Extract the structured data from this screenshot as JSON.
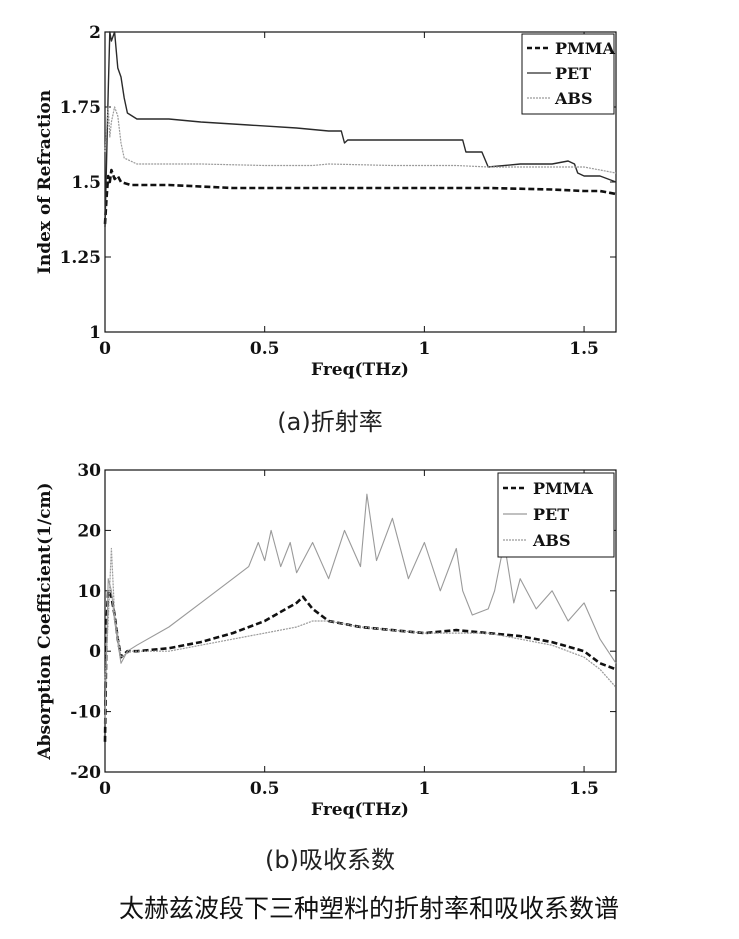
{
  "figure_caption": "太赫兹波段下三种塑料的折射率和吸收系数谱",
  "colors": {
    "PMMA": "#111111",
    "PET": "#2a2a2a",
    "ABS": "#9a9a9a"
  },
  "chart_data": [
    {
      "type": "line",
      "caption": "(a)折射率",
      "xlabel": "Freq(THz)",
      "ylabel": "Index of Refraction",
      "xlim": [
        0,
        1.6
      ],
      "ylim": [
        1,
        2
      ],
      "xticks": [
        0,
        0.5,
        1,
        1.5
      ],
      "xtick_labels": [
        "0",
        "0.5",
        "1",
        "1.5"
      ],
      "yticks": [
        1,
        1.25,
        1.5,
        1.75,
        2
      ],
      "ytick_labels": [
        "1",
        "1.25",
        "1.5",
        "1.75",
        "2"
      ],
      "legend_position": "top-right",
      "series": [
        {
          "name": "PMMA",
          "style": "dashed",
          "points": [
            [
              0.0,
              1.36
            ],
            [
              0.005,
              1.45
            ],
            [
              0.01,
              1.52
            ],
            [
              0.015,
              1.5
            ],
            [
              0.02,
              1.54
            ],
            [
              0.03,
              1.51
            ],
            [
              0.04,
              1.52
            ],
            [
              0.05,
              1.5
            ],
            [
              0.08,
              1.49
            ],
            [
              0.2,
              1.49
            ],
            [
              0.4,
              1.48
            ],
            [
              0.6,
              1.48
            ],
            [
              0.8,
              1.48
            ],
            [
              1.0,
              1.48
            ],
            [
              1.2,
              1.48
            ],
            [
              1.4,
              1.475
            ],
            [
              1.5,
              1.47
            ],
            [
              1.55,
              1.47
            ],
            [
              1.6,
              1.46
            ]
          ]
        },
        {
          "name": "PET",
          "style": "solid",
          "points": [
            [
              0.0,
              1.35
            ],
            [
              0.01,
              1.8
            ],
            [
              0.015,
              2.0
            ],
            [
              0.02,
              1.97
            ],
            [
              0.03,
              2.0
            ],
            [
              0.04,
              1.88
            ],
            [
              0.05,
              1.85
            ],
            [
              0.06,
              1.78
            ],
            [
              0.07,
              1.73
            ],
            [
              0.1,
              1.71
            ],
            [
              0.2,
              1.71
            ],
            [
              0.3,
              1.7
            ],
            [
              0.45,
              1.69
            ],
            [
              0.6,
              1.68
            ],
            [
              0.7,
              1.67
            ],
            [
              0.74,
              1.67
            ],
            [
              0.75,
              1.63
            ],
            [
              0.76,
              1.64
            ],
            [
              0.8,
              1.64
            ],
            [
              0.9,
              1.64
            ],
            [
              1.0,
              1.64
            ],
            [
              1.1,
              1.64
            ],
            [
              1.12,
              1.64
            ],
            [
              1.13,
              1.6
            ],
            [
              1.18,
              1.6
            ],
            [
              1.2,
              1.55
            ],
            [
              1.3,
              1.56
            ],
            [
              1.4,
              1.56
            ],
            [
              1.45,
              1.57
            ],
            [
              1.47,
              1.56
            ],
            [
              1.48,
              1.53
            ],
            [
              1.5,
              1.52
            ],
            [
              1.55,
              1.52
            ],
            [
              1.6,
              1.5
            ]
          ]
        },
        {
          "name": "ABS",
          "style": "solid",
          "points": [
            [
              0.0,
              1.6
            ],
            [
              0.01,
              1.75
            ],
            [
              0.015,
              1.65
            ],
            [
              0.02,
              1.7
            ],
            [
              0.03,
              1.75
            ],
            [
              0.04,
              1.72
            ],
            [
              0.05,
              1.63
            ],
            [
              0.06,
              1.58
            ],
            [
              0.08,
              1.57
            ],
            [
              0.1,
              1.56
            ],
            [
              0.3,
              1.56
            ],
            [
              0.5,
              1.555
            ],
            [
              0.65,
              1.555
            ],
            [
              0.7,
              1.56
            ],
            [
              0.9,
              1.555
            ],
            [
              1.1,
              1.555
            ],
            [
              1.2,
              1.55
            ],
            [
              1.4,
              1.55
            ],
            [
              1.5,
              1.55
            ],
            [
              1.55,
              1.54
            ],
            [
              1.6,
              1.53
            ]
          ]
        }
      ]
    },
    {
      "type": "line",
      "caption": "(b)吸收系数",
      "xlabel": "Freq(THz)",
      "ylabel": "Absorption Coefficient(1/cm)",
      "xlim": [
        0,
        1.6
      ],
      "ylim": [
        -20,
        30
      ],
      "xticks": [
        0,
        0.5,
        1,
        1.5
      ],
      "xtick_labels": [
        "0",
        "0.5",
        "1",
        "1.5"
      ],
      "yticks": [
        -20,
        -10,
        0,
        10,
        20,
        30
      ],
      "ytick_labels": [
        "-20",
        "-10",
        "0",
        "10",
        "20",
        "30"
      ],
      "legend_position": "top-right",
      "series": [
        {
          "name": "PMMA",
          "style": "dashed",
          "points": [
            [
              0.0,
              -15
            ],
            [
              0.005,
              5
            ],
            [
              0.01,
              10
            ],
            [
              0.02,
              9
            ],
            [
              0.03,
              6
            ],
            [
              0.04,
              2
            ],
            [
              0.05,
              -1
            ],
            [
              0.07,
              0
            ],
            [
              0.1,
              0
            ],
            [
              0.2,
              0.5
            ],
            [
              0.3,
              1.5
            ],
            [
              0.4,
              3
            ],
            [
              0.5,
              5
            ],
            [
              0.55,
              6.5
            ],
            [
              0.6,
              8
            ],
            [
              0.62,
              9
            ],
            [
              0.65,
              7
            ],
            [
              0.7,
              5
            ],
            [
              0.8,
              4
            ],
            [
              0.9,
              3.5
            ],
            [
              1.0,
              3
            ],
            [
              1.1,
              3.5
            ],
            [
              1.2,
              3
            ],
            [
              1.3,
              2.5
            ],
            [
              1.4,
              1.5
            ],
            [
              1.5,
              0
            ],
            [
              1.55,
              -2
            ],
            [
              1.6,
              -3
            ]
          ]
        },
        {
          "name": "PET",
          "style": "solid",
          "points": [
            [
              0.0,
              -12
            ],
            [
              0.005,
              0
            ],
            [
              0.01,
              12
            ],
            [
              0.02,
              10
            ],
            [
              0.03,
              5
            ],
            [
              0.05,
              -2
            ],
            [
              0.07,
              0
            ],
            [
              0.1,
              1
            ],
            [
              0.2,
              4
            ],
            [
              0.3,
              8
            ],
            [
              0.4,
              12
            ],
            [
              0.45,
              14
            ],
            [
              0.48,
              18
            ],
            [
              0.5,
              15
            ],
            [
              0.52,
              20
            ],
            [
              0.55,
              14
            ],
            [
              0.58,
              18
            ],
            [
              0.6,
              13
            ],
            [
              0.65,
              18
            ],
            [
              0.7,
              12
            ],
            [
              0.75,
              20
            ],
            [
              0.8,
              14
            ],
            [
              0.82,
              26
            ],
            [
              0.85,
              15
            ],
            [
              0.9,
              22
            ],
            [
              0.95,
              12
            ],
            [
              1.0,
              18
            ],
            [
              1.05,
              10
            ],
            [
              1.1,
              17
            ],
            [
              1.12,
              10
            ],
            [
              1.15,
              6
            ],
            [
              1.2,
              7
            ],
            [
              1.22,
              10
            ],
            [
              1.25,
              18
            ],
            [
              1.28,
              8
            ],
            [
              1.3,
              12
            ],
            [
              1.35,
              7
            ],
            [
              1.4,
              10
            ],
            [
              1.45,
              5
            ],
            [
              1.5,
              8
            ],
            [
              1.55,
              2
            ],
            [
              1.6,
              -2
            ]
          ]
        },
        {
          "name": "ABS",
          "style": "solid",
          "points": [
            [
              0.0,
              -5
            ],
            [
              0.01,
              5
            ],
            [
              0.02,
              17
            ],
            [
              0.03,
              6
            ],
            [
              0.05,
              -1
            ],
            [
              0.08,
              0
            ],
            [
              0.2,
              0
            ],
            [
              0.3,
              1
            ],
            [
              0.4,
              2
            ],
            [
              0.5,
              3
            ],
            [
              0.6,
              4
            ],
            [
              0.65,
              5
            ],
            [
              0.7,
              5
            ],
            [
              0.8,
              4
            ],
            [
              0.9,
              3.5
            ],
            [
              1.0,
              3
            ],
            [
              1.1,
              3
            ],
            [
              1.2,
              3
            ],
            [
              1.3,
              2
            ],
            [
              1.4,
              1
            ],
            [
              1.5,
              -1
            ],
            [
              1.55,
              -3
            ],
            [
              1.6,
              -6
            ]
          ]
        }
      ]
    }
  ]
}
